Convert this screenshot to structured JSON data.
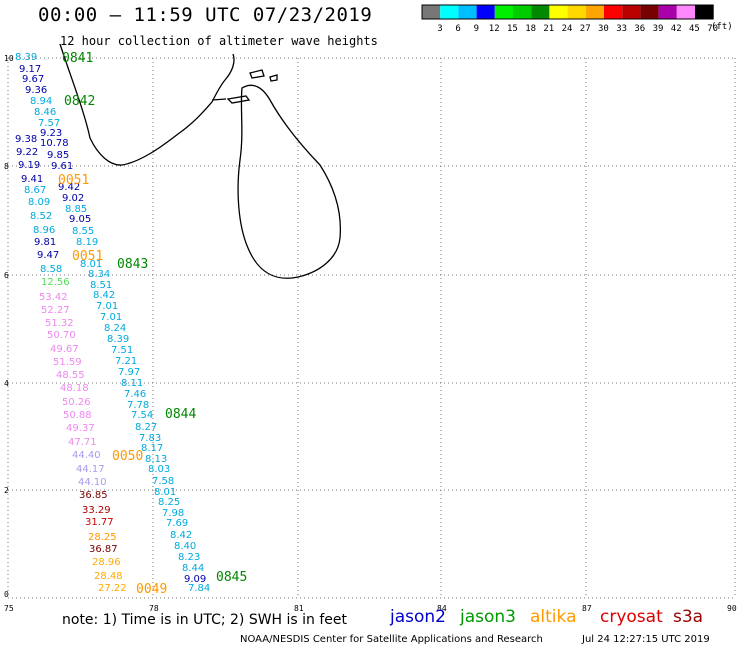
{
  "title": "00:00 – 11:59 UTC 07/23/2019",
  "subtitle": "12 hour collection of altimeter wave heights",
  "note": "note: 1) Time is in UTC; 2) SWH is in feet",
  "credit": "NOAA/NESDIS Center for Satellite Applications and Research",
  "credit_timestamp": "Jul 24 12:27:15 UTC 2019",
  "colorbar": {
    "unit": "(ft)",
    "labels": [
      "3",
      "6",
      "9",
      "12",
      "15",
      "18",
      "21",
      "24",
      "27",
      "30",
      "33",
      "36",
      "39",
      "42",
      "45",
      "70"
    ],
    "colors": [
      "#777777",
      "#00ffff",
      "#00bfff",
      "#0000ff",
      "#00ee00",
      "#00cc00",
      "#008800",
      "#ffff00",
      "#ffd800",
      "#ffa500",
      "#ff0000",
      "#bb0000",
      "#770000",
      "#aa00aa",
      "#ff88ff",
      "#000000"
    ]
  },
  "satellites": [
    {
      "name": "jason2",
      "color": "#0000cc"
    },
    {
      "name": "jason3",
      "color": "#009900"
    },
    {
      "name": "altika",
      "color": "#ff9900"
    },
    {
      "name": "cryosat",
      "color": "#dd0000"
    },
    {
      "name": "s3a",
      "color": "#990000"
    }
  ],
  "map": {
    "lon_range": [
      75,
      90
    ],
    "lat_range": [
      0,
      10
    ],
    "x_ticks": [
      "75",
      "78",
      "81",
      "84",
      "87",
      "90"
    ],
    "y_ticks": [
      "0",
      "2",
      "4",
      "6",
      "8",
      "10"
    ],
    "grid": "dotted"
  },
  "track_times": [
    {
      "label": "0841",
      "color": "#008800"
    },
    {
      "label": "0842",
      "color": "#008800"
    },
    {
      "label": "0051",
      "color": "#ff9900"
    },
    {
      "label": "0051",
      "color": "#ff9900"
    },
    {
      "label": "0843",
      "color": "#008800"
    },
    {
      "label": "0844",
      "color": "#008800"
    },
    {
      "label": "0050",
      "color": "#ff9900"
    },
    {
      "label": "0845",
      "color": "#008800"
    },
    {
      "label": "0049",
      "color": "#ff9900"
    }
  ],
  "wave_heights": [
    {
      "v": "8.39",
      "c": "#00aadd"
    },
    {
      "v": "9.17",
      "c": "#0000aa"
    },
    {
      "v": "9.67",
      "c": "#0000aa"
    },
    {
      "v": "9.36",
      "c": "#0000aa"
    },
    {
      "v": "8.94",
      "c": "#00aadd"
    },
    {
      "v": "8.46",
      "c": "#00aadd"
    },
    {
      "v": "7.57",
      "c": "#00aadd"
    },
    {
      "v": "9.23",
      "c": "#0000aa"
    },
    {
      "v": "9.38",
      "c": "#0000aa"
    },
    {
      "v": "10.78",
      "c": "#0000aa"
    },
    {
      "v": "9.22",
      "c": "#0000aa"
    },
    {
      "v": "9.85",
      "c": "#0000aa"
    },
    {
      "v": "9.19",
      "c": "#0000aa"
    },
    {
      "v": "9.61",
      "c": "#0000aa"
    },
    {
      "v": "9.41",
      "c": "#0000aa"
    },
    {
      "v": "8.67",
      "c": "#00aadd"
    },
    {
      "v": "9.42",
      "c": "#0000aa"
    },
    {
      "v": "8.09",
      "c": "#00aadd"
    },
    {
      "v": "9.02",
      "c": "#0000aa"
    },
    {
      "v": "8.85",
      "c": "#00aadd"
    },
    {
      "v": "8.52",
      "c": "#00aadd"
    },
    {
      "v": "9.05",
      "c": "#0000aa"
    },
    {
      "v": "8.96",
      "c": "#00aadd"
    },
    {
      "v": "8.55",
      "c": "#00aadd"
    },
    {
      "v": "9.81",
      "c": "#0000aa"
    },
    {
      "v": "8.19",
      "c": "#00aadd"
    },
    {
      "v": "9.47",
      "c": "#0000aa"
    },
    {
      "v": "8.01",
      "c": "#00aadd"
    },
    {
      "v": "8.58",
      "c": "#00aadd"
    },
    {
      "v": "8.34",
      "c": "#00aadd"
    },
    {
      "v": "12.56",
      "c": "#55dd55"
    },
    {
      "v": "8.51",
      "c": "#00aadd"
    },
    {
      "v": "53.42",
      "c": "#ee88ee"
    },
    {
      "v": "8.42",
      "c": "#00aadd"
    },
    {
      "v": "52.27",
      "c": "#ee88ee"
    },
    {
      "v": "7.01",
      "c": "#00aadd"
    },
    {
      "v": "7.01",
      "c": "#00aadd"
    },
    {
      "v": "51.32",
      "c": "#ee88ee"
    },
    {
      "v": "8.24",
      "c": "#00aadd"
    },
    {
      "v": "50.70",
      "c": "#ee88ee"
    },
    {
      "v": "8.39",
      "c": "#00aadd"
    },
    {
      "v": "49.67",
      "c": "#ee88ee"
    },
    {
      "v": "7.51",
      "c": "#00aadd"
    },
    {
      "v": "51.59",
      "c": "#ee88ee"
    },
    {
      "v": "7.21",
      "c": "#00aadd"
    },
    {
      "v": "48.55",
      "c": "#ee88ee"
    },
    {
      "v": "7.97",
      "c": "#00aadd"
    },
    {
      "v": "8.11",
      "c": "#00aadd"
    },
    {
      "v": "48.18",
      "c": "#ee88ee"
    },
    {
      "v": "7.46",
      "c": "#00aadd"
    },
    {
      "v": "50.26",
      "c": "#ee88ee"
    },
    {
      "v": "7.78",
      "c": "#00aadd"
    },
    {
      "v": "50.88",
      "c": "#ee88ee"
    },
    {
      "v": "7.54",
      "c": "#00aadd"
    },
    {
      "v": "49.37",
      "c": "#ee88ee"
    },
    {
      "v": "8.27",
      "c": "#00aadd"
    },
    {
      "v": "7.83",
      "c": "#00aadd"
    },
    {
      "v": "47.71",
      "c": "#ee88ee"
    },
    {
      "v": "8.17",
      "c": "#00aadd"
    },
    {
      "v": "44.40",
      "c": "#aa99ee"
    },
    {
      "v": "8.13",
      "c": "#00aadd"
    },
    {
      "v": "44.17",
      "c": "#aa99ee"
    },
    {
      "v": "8.03",
      "c": "#00aadd"
    },
    {
      "v": "44.10",
      "c": "#aa99ee"
    },
    {
      "v": "7.58",
      "c": "#00aadd"
    },
    {
      "v": "8.01",
      "c": "#00aadd"
    },
    {
      "v": "36.85",
      "c": "#770000"
    },
    {
      "v": "8.25",
      "c": "#00aadd"
    },
    {
      "v": "33.29",
      "c": "#aa0000"
    },
    {
      "v": "7.98",
      "c": "#00aadd"
    },
    {
      "v": "31.77",
      "c": "#cc0000"
    },
    {
      "v": "7.69",
      "c": "#00aadd"
    },
    {
      "v": "8.42",
      "c": "#00aadd"
    },
    {
      "v": "28.25",
      "c": "#ff9900"
    },
    {
      "v": "8.40",
      "c": "#00aadd"
    },
    {
      "v": "36.87",
      "c": "#770000"
    },
    {
      "v": "8.23",
      "c": "#00aadd"
    },
    {
      "v": "28.96",
      "c": "#ffaa00"
    },
    {
      "v": "8.44",
      "c": "#00aadd"
    },
    {
      "v": "28.48",
      "c": "#ffaa00"
    },
    {
      "v": "9.09",
      "c": "#0000aa"
    },
    {
      "v": "27.22",
      "c": "#ffaa00"
    },
    {
      "v": "7.84",
      "c": "#00aadd"
    }
  ]
}
